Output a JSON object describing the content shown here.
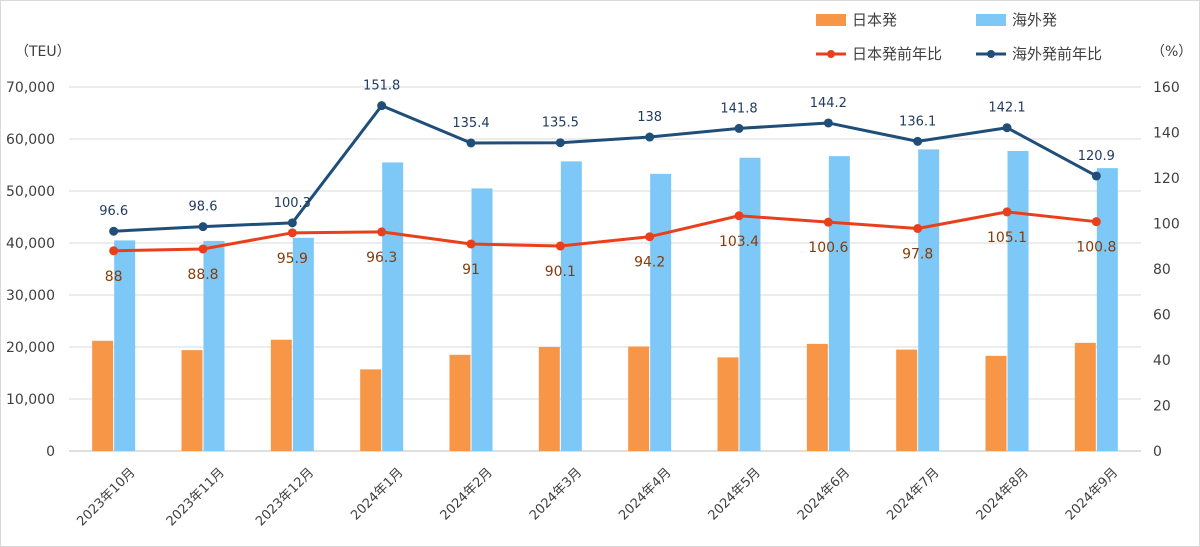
{
  "chart_data": {
    "type": "bar",
    "categories": [
      "2023年10月",
      "2023年11月",
      "2023年12月",
      "2024年1月",
      "2024年2月",
      "2024年3月",
      "2024年4月",
      "2024年5月",
      "2024年6月",
      "2024年7月",
      "2024年8月",
      "2024年9月"
    ],
    "left_unit": "（TEU）",
    "right_unit": "（%）",
    "ylim_left": [
      0,
      70000
    ],
    "ylim_right": [
      0,
      160
    ],
    "left_ticks": [
      "0",
      "10,000",
      "20,000",
      "30,000",
      "40,000",
      "50,000",
      "60,000",
      "70,000"
    ],
    "right_ticks": [
      "0",
      "20",
      "40",
      "60",
      "80",
      "100",
      "120",
      "140",
      "160"
    ],
    "grid": true,
    "legend_position": "top-right",
    "series": [
      {
        "name": "日本発",
        "kind": "bar",
        "axis": "left",
        "color": "#f79646",
        "values": [
          21200,
          19400,
          21400,
          15700,
          18500,
          20000,
          20100,
          18000,
          20600,
          19500,
          18300,
          20800
        ]
      },
      {
        "name": "海外発",
        "kind": "bar",
        "axis": "left",
        "color": "#7ec8f7",
        "values": [
          40500,
          40400,
          41000,
          55500,
          50500,
          55700,
          53300,
          56400,
          56700,
          58000,
          57700,
          54400
        ]
      },
      {
        "name": "日本発前年比",
        "kind": "line",
        "axis": "right",
        "color": "#e8401c",
        "values": [
          88,
          88.8,
          95.9,
          96.3,
          91,
          90.1,
          94.2,
          103.4,
          100.6,
          97.8,
          105.1,
          100.8
        ],
        "labels": [
          "88",
          "88.8",
          "95.9",
          "96.3",
          "91",
          "90.1",
          "94.2",
          "103.4",
          "100.6",
          "97.8",
          "105.1",
          "100.8"
        ]
      },
      {
        "name": "海外発前年比",
        "kind": "line",
        "axis": "right",
        "color": "#1f4e79",
        "values": [
          96.6,
          98.6,
          100.3,
          151.8,
          135.4,
          135.5,
          138,
          141.8,
          144.2,
          136.1,
          142.1,
          120.9
        ],
        "labels": [
          "96.6",
          "98.6",
          "100.3",
          "151.8",
          "135.4",
          "135.5",
          "138",
          "141.8",
          "144.2",
          "136.1",
          "142.1",
          "120.9"
        ]
      }
    ]
  }
}
